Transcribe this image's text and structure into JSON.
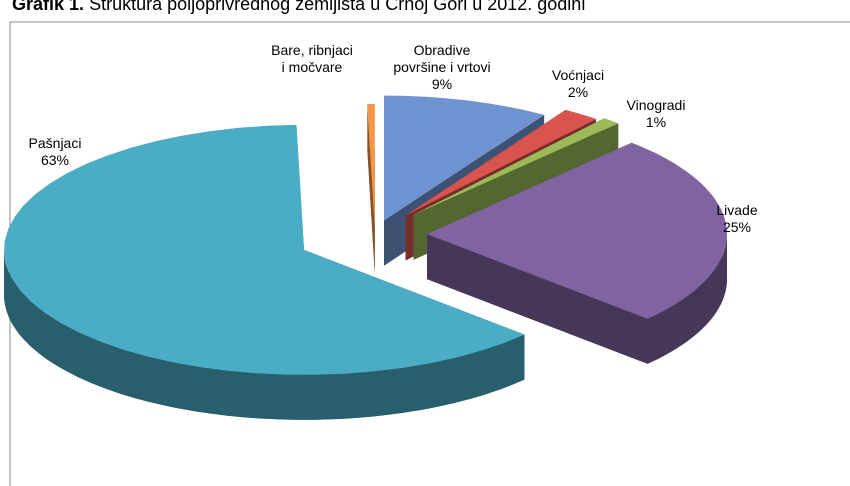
{
  "chart_data": {
    "type": "pie3d",
    "title_prefix": "Grafik 1.",
    "title": "Struktura poljoprivrednog zemljišta u Crnoj Gori u 2012. godini",
    "categories": [
      "Obradive površine i vrtovi",
      "Voćnjaci",
      "Vinogradi",
      "Livade",
      "Pašnjaci",
      "Bare, ribnjaci i močvare"
    ],
    "values": [
      9,
      2,
      1,
      25,
      63,
      0.4
    ],
    "value_labels": [
      "9%",
      "2%",
      "1%",
      "25%",
      "63%",
      null
    ],
    "colors": [
      "#6f93d0",
      "#d9534f",
      "#9bbb59",
      "#8064a2",
      "#4bacc6",
      "#f79646"
    ]
  }
}
